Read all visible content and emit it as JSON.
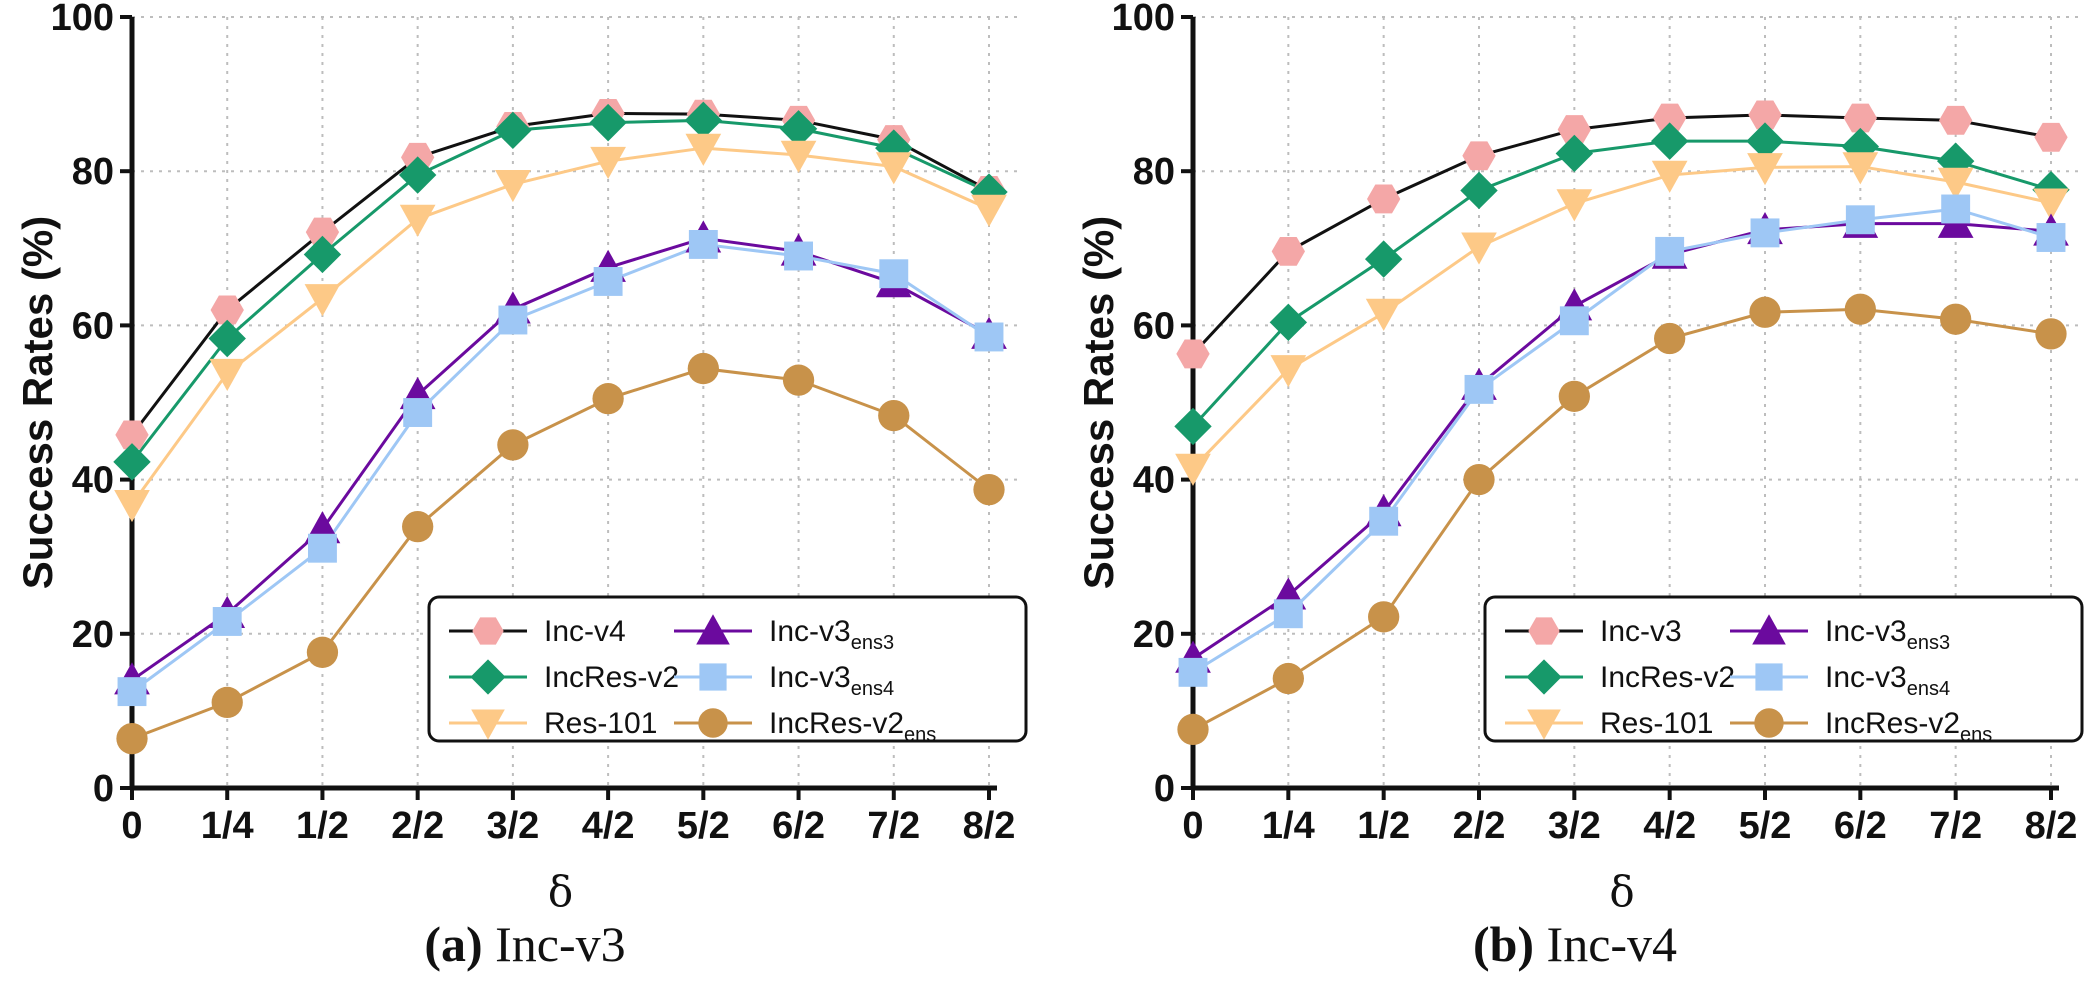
{
  "chart_data": [
    {
      "type": "line",
      "panel_label": "(a)",
      "caption": "Inc-v3",
      "xlabel": "δ",
      "ylabel": "Success Rates (%)",
      "ylim": [
        0,
        100
      ],
      "yticks": [
        0,
        20,
        40,
        60,
        80,
        100
      ],
      "categories": [
        "0",
        "1/4",
        "1/2",
        "2/2",
        "3/2",
        "4/2",
        "5/2",
        "6/2",
        "7/2",
        "8/2"
      ],
      "grid": true,
      "legend_position": "bottom-right",
      "series": [
        {
          "name": "Inc-v4",
          "sub": "",
          "marker": "hexagon",
          "color": "#F4A7A7",
          "line": "#111111",
          "values": [
            45.8,
            62.0,
            72.1,
            81.8,
            85.8,
            87.5,
            87.4,
            86.6,
            84.1,
            77.5
          ]
        },
        {
          "name": "IncRes-v2",
          "sub": "",
          "marker": "diamond",
          "color": "#17996A",
          "line": "#17996A",
          "values": [
            42.3,
            58.3,
            69.2,
            79.5,
            85.3,
            86.3,
            86.6,
            85.5,
            83.0,
            77.3
          ]
        },
        {
          "name": "Res-101",
          "sub": "",
          "marker": "triangle-down",
          "color": "#FDC987",
          "line": "#FDC987",
          "values": [
            36.8,
            53.8,
            63.5,
            73.8,
            78.3,
            81.3,
            83.0,
            82.1,
            80.6,
            75.1
          ]
        },
        {
          "name": "Inc-v3",
          "sub": "ens3",
          "marker": "triangle-up",
          "color": "#6B0A9E",
          "line": "#6B0A9E",
          "values": [
            14.0,
            22.6,
            33.6,
            51.0,
            62.1,
            67.5,
            71.3,
            69.6,
            65.5,
            58.8
          ]
        },
        {
          "name": "Inc-v3",
          "sub": "ens4",
          "marker": "square",
          "color": "#9EC7F5",
          "line": "#9EC7F5",
          "values": [
            12.5,
            21.6,
            31.1,
            48.7,
            60.7,
            65.7,
            70.5,
            69.0,
            66.7,
            58.5
          ]
        },
        {
          "name": "IncRes-v2",
          "sub": "ens",
          "marker": "circle",
          "color": "#C8924A",
          "line": "#C8924A",
          "values": [
            6.4,
            11.1,
            17.6,
            33.9,
            44.5,
            50.5,
            54.4,
            52.9,
            48.3,
            38.7
          ]
        }
      ]
    },
    {
      "type": "line",
      "panel_label": "(b)",
      "caption": "Inc-v4",
      "xlabel": "δ",
      "ylabel": "Success Rates (%)",
      "ylim": [
        0,
        100
      ],
      "yticks": [
        0,
        20,
        40,
        60,
        80,
        100
      ],
      "categories": [
        "0",
        "1/4",
        "1/2",
        "2/2",
        "3/2",
        "4/2",
        "5/2",
        "6/2",
        "7/2",
        "8/2"
      ],
      "grid": true,
      "legend_position": "bottom-right",
      "series": [
        {
          "name": "Inc-v3",
          "sub": "",
          "marker": "hexagon",
          "color": "#F4A7A7",
          "line": "#111111",
          "values": [
            56.3,
            69.6,
            76.4,
            82.0,
            85.4,
            86.9,
            87.3,
            86.9,
            86.6,
            84.4
          ]
        },
        {
          "name": "IncRes-v2",
          "sub": "",
          "marker": "diamond",
          "color": "#17996A",
          "line": "#17996A",
          "values": [
            46.9,
            60.4,
            68.6,
            77.5,
            82.3,
            83.9,
            83.9,
            83.2,
            81.3,
            77.6
          ]
        },
        {
          "name": "Res-101",
          "sub": "",
          "marker": "triangle-down",
          "color": "#FDC987",
          "line": "#FDC987",
          "values": [
            41.5,
            54.3,
            61.6,
            70.2,
            75.8,
            79.5,
            80.5,
            80.6,
            78.6,
            75.9
          ]
        },
        {
          "name": "Inc-v3",
          "sub": "ens3",
          "marker": "triangle-up",
          "color": "#6B0A9E",
          "line": "#6B0A9E",
          "values": [
            16.8,
            25.0,
            35.8,
            52.2,
            62.5,
            69.2,
            72.4,
            73.2,
            73.2,
            72.2
          ]
        },
        {
          "name": "Inc-v3",
          "sub": "ens4",
          "marker": "square",
          "color": "#9EC7F5",
          "line": "#9EC7F5",
          "values": [
            15.0,
            22.6,
            34.6,
            51.7,
            60.6,
            69.6,
            72.0,
            73.7,
            75.1,
            71.4
          ]
        },
        {
          "name": "IncRes-v2",
          "sub": "ens",
          "marker": "circle",
          "color": "#C8924A",
          "line": "#C8924A",
          "values": [
            7.6,
            14.2,
            22.2,
            40.0,
            50.8,
            58.3,
            61.7,
            62.1,
            60.8,
            58.9
          ]
        }
      ]
    }
  ]
}
